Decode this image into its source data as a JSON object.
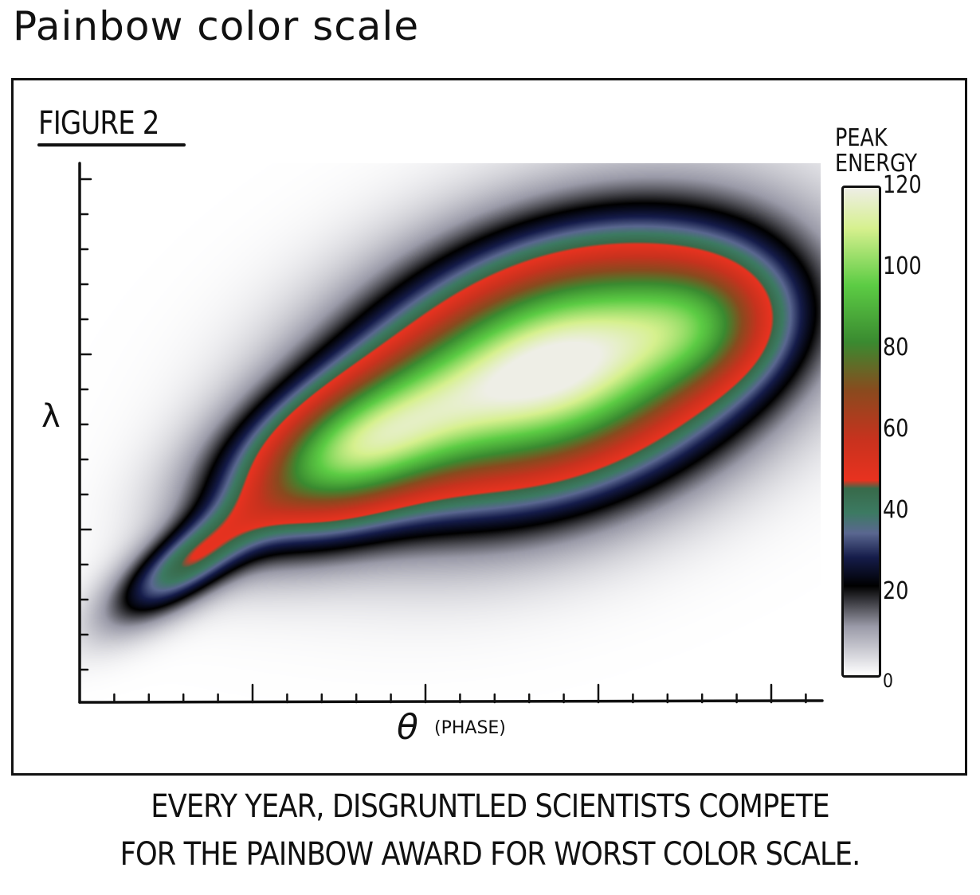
{
  "page_title": "Painbow color scale",
  "caption": [
    "EVERY YEAR, DISGRUNTLED SCIENTISTS COMPETE",
    "FOR THE PAINBOW AWARD FOR WORST COLOR SCALE."
  ],
  "chart_data": {
    "type": "heatmap",
    "title": "FIGURE 2",
    "xlabel_symbol": "θ",
    "xlabel_note": "(PHASE)",
    "ylabel": "λ",
    "colorbar": {
      "title": "PEAK ENERGY",
      "ticks": [
        "120",
        "100",
        "80",
        "60",
        "40",
        "20",
        "0"
      ],
      "range": [
        0,
        120
      ],
      "stops": [
        {
          "v": 0,
          "c": "#ffffff"
        },
        {
          "v": 12,
          "c": "#9a9aa8"
        },
        {
          "v": 22,
          "c": "#000000"
        },
        {
          "v": 29,
          "c": "#151c4a"
        },
        {
          "v": 35,
          "c": "#5a6790"
        },
        {
          "v": 40,
          "c": "#3c7a62"
        },
        {
          "v": 46,
          "c": "#386a4a"
        },
        {
          "v": 48,
          "c": "#e8321f"
        },
        {
          "v": 58,
          "c": "#c8321e"
        },
        {
          "v": 70,
          "c": "#8a4a1e"
        },
        {
          "v": 82,
          "c": "#3a8a30"
        },
        {
          "v": 96,
          "c": "#5ccc44"
        },
        {
          "v": 110,
          "c": "#d6f08e"
        },
        {
          "v": 120,
          "c": "#eeeee6"
        }
      ]
    },
    "peak_value_max": 120
  }
}
